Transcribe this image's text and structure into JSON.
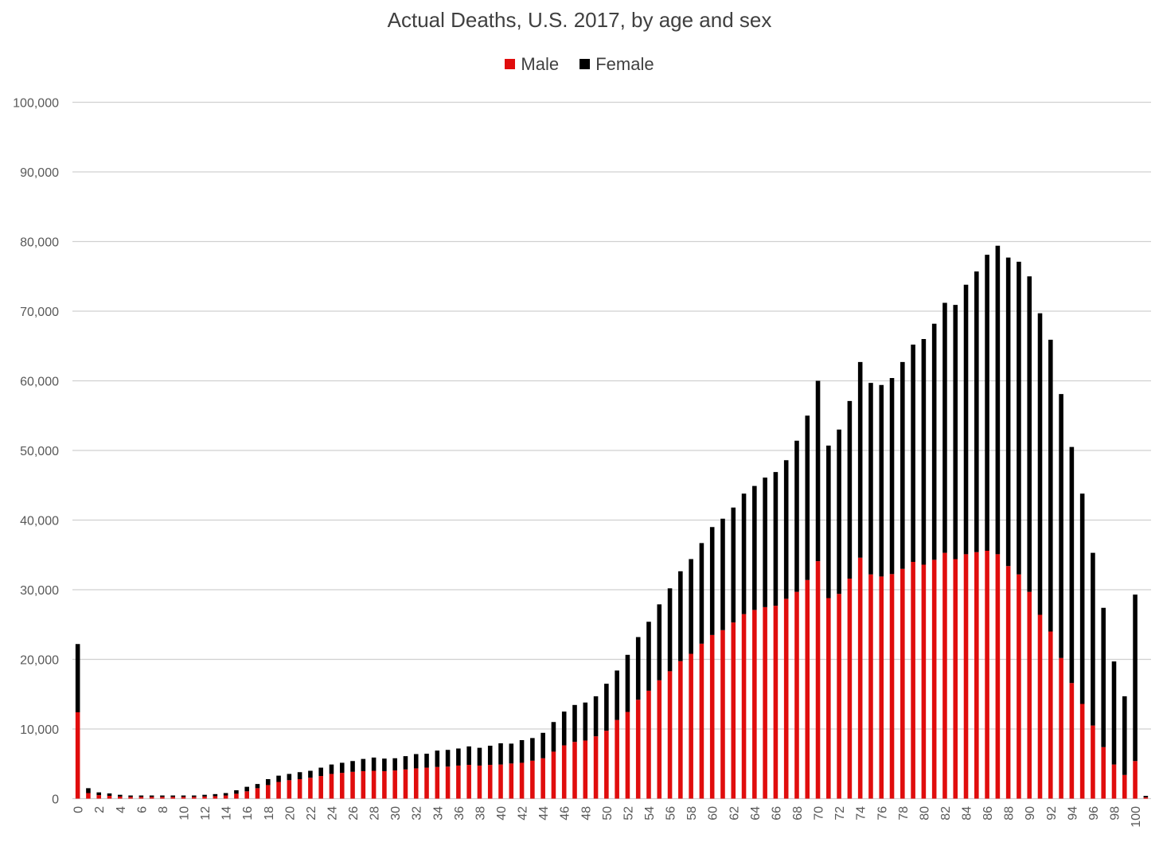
{
  "chart_data": {
    "type": "bar",
    "stacked": true,
    "title": "Actual Deaths, U.S. 2017, by age and sex",
    "xlabel": "",
    "ylabel": "",
    "ylim": [
      0,
      100000
    ],
    "yticks": [
      "0",
      "10,000",
      "20,000",
      "30,000",
      "40,000",
      "50,000",
      "60,000",
      "70,000",
      "80,000",
      "90,000",
      "100,000"
    ],
    "xtick_labels": [
      "0",
      "2",
      "4",
      "6",
      "8",
      "10",
      "12",
      "14",
      "16",
      "18",
      "20",
      "22",
      "24",
      "26",
      "28",
      "30",
      "32",
      "34",
      "36",
      "38",
      "40",
      "42",
      "44",
      "46",
      "48",
      "50",
      "52",
      "54",
      "56",
      "58",
      "60",
      "62",
      "64",
      "66",
      "68",
      "70",
      "72",
      "74",
      "76",
      "78",
      "80",
      "82",
      "84",
      "86",
      "88",
      "90",
      "92",
      "94",
      "96",
      "98",
      "100"
    ],
    "grid": true,
    "legend_position": "top",
    "categories": [
      0,
      1,
      2,
      3,
      4,
      5,
      6,
      7,
      8,
      9,
      10,
      11,
      12,
      13,
      14,
      15,
      16,
      17,
      18,
      19,
      20,
      21,
      22,
      23,
      24,
      25,
      26,
      27,
      28,
      29,
      30,
      31,
      32,
      33,
      34,
      35,
      36,
      37,
      38,
      39,
      40,
      41,
      42,
      43,
      44,
      45,
      46,
      47,
      48,
      49,
      50,
      51,
      52,
      53,
      54,
      55,
      56,
      57,
      58,
      59,
      60,
      61,
      62,
      63,
      64,
      65,
      66,
      67,
      68,
      69,
      70,
      71,
      72,
      73,
      74,
      75,
      76,
      77,
      78,
      79,
      80,
      81,
      82,
      83,
      84,
      85,
      86,
      87,
      88,
      89,
      90,
      91,
      92,
      93,
      94,
      95,
      96,
      97,
      98,
      99,
      100,
      101
    ],
    "series": [
      {
        "name": "Male",
        "color": "#e00d0d",
        "values": [
          12400,
          800,
          500,
          400,
          300,
          250,
          250,
          250,
          250,
          250,
          250,
          250,
          300,
          350,
          450,
          700,
          1050,
          1500,
          1950,
          2400,
          2650,
          2800,
          3000,
          3250,
          3550,
          3700,
          3850,
          3950,
          4000,
          3950,
          4050,
          4200,
          4350,
          4450,
          4550,
          4600,
          4750,
          4850,
          4750,
          4850,
          4900,
          5050,
          5150,
          5450,
          5800,
          6750,
          7650,
          8150,
          8350,
          8950,
          9750,
          11300,
          12450,
          14200,
          15500,
          17000,
          18300,
          19750,
          20800,
          22250,
          23500,
          24200,
          25300,
          26500,
          27100,
          27500,
          27700,
          28700,
          29700,
          31400,
          34100,
          28800,
          29400,
          31600,
          34600,
          32200,
          31900,
          32250,
          33000,
          34000,
          33600,
          34300,
          35300,
          34400,
          35100,
          35400,
          35600,
          35100,
          33400,
          32200,
          29700,
          26400,
          24000,
          20200,
          16600,
          13600,
          10500,
          7400,
          4900,
          3400,
          5400,
          200
        ]
      },
      {
        "name": "Female",
        "color": "#000000",
        "values": [
          9800,
          700,
          400,
          350,
          250,
          200,
          200,
          200,
          200,
          200,
          200,
          200,
          250,
          300,
          350,
          500,
          650,
          600,
          850,
          900,
          900,
          1000,
          1000,
          1200,
          1350,
          1450,
          1550,
          1750,
          1900,
          1800,
          1750,
          1900,
          2050,
          2000,
          2350,
          2400,
          2450,
          2650,
          2550,
          2750,
          3050,
          2850,
          3250,
          3250,
          3650,
          4250,
          4850,
          5300,
          5450,
          5750,
          6750,
          7100,
          8200,
          9000,
          9900,
          10900,
          11900,
          12900,
          13600,
          14450,
          15500,
          16000,
          16500,
          17300,
          17800,
          18600,
          19200,
          19900,
          21700,
          23600,
          25900,
          21900,
          23600,
          25500,
          28100,
          27500,
          27500,
          28150,
          29700,
          31200,
          32400,
          33900,
          35900,
          36500,
          38700,
          40300,
          42500,
          44300,
          44300,
          44900,
          45300,
          43300,
          41900,
          37900,
          33900,
          30200,
          24800,
          20000,
          14800,
          11300,
          23900,
          200
        ]
      }
    ]
  }
}
